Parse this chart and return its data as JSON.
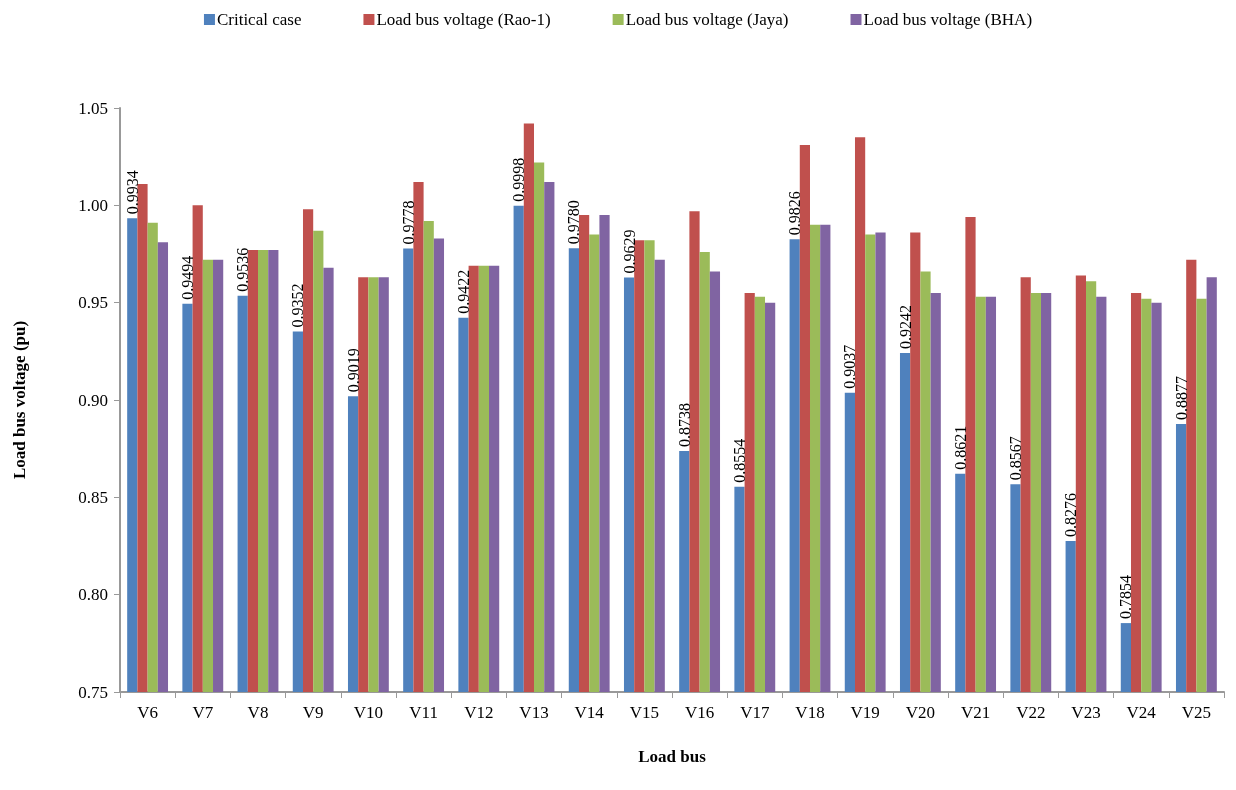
{
  "chart_data": {
    "type": "bar",
    "xlabel": "Load bus",
    "ylabel": "Load bus voltage (pu)",
    "categories": [
      "V6",
      "V7",
      "V8",
      "V9",
      "V10",
      "V11",
      "V12",
      "V13",
      "V14",
      "V15",
      "V16",
      "V17",
      "V18",
      "V19",
      "V20",
      "V21",
      "V22",
      "V23",
      "V24",
      "V25"
    ],
    "series": [
      {
        "name": "Critical case",
        "color": "#4f81bd",
        "values": [
          0.9934,
          0.9494,
          0.9536,
          0.9352,
          0.9019,
          0.9778,
          0.9422,
          0.9998,
          0.978,
          0.9629,
          0.8738,
          0.8554,
          0.9826,
          0.9037,
          0.9242,
          0.8621,
          0.8567,
          0.8276,
          0.7854,
          0.8877
        ],
        "value_labels": [
          "0.9934",
          "0.9494",
          "0.9536",
          "0.9352",
          "0.9019",
          "0.9778",
          "0.9422",
          "0.9998",
          "0.9780",
          "0.9629",
          "0.8738",
          "0.8554",
          "0.9826",
          "0.9037",
          "0.9242",
          "0.8621",
          "0.8567",
          "0.8276",
          "0.7854",
          "0.8877"
        ]
      },
      {
        "name": "Load bus voltage (Rao-1)",
        "color": "#c0504d",
        "values": [
          1.011,
          1.0,
          0.977,
          0.998,
          0.963,
          1.012,
          0.969,
          1.042,
          0.995,
          0.982,
          0.997,
          0.955,
          1.031,
          1.035,
          0.986,
          0.994,
          0.963,
          0.964,
          0.955,
          0.972
        ]
      },
      {
        "name": "Load bus voltage (Jaya)",
        "color": "#9bbb59",
        "values": [
          0.991,
          0.972,
          0.977,
          0.987,
          0.963,
          0.992,
          0.969,
          1.022,
          0.985,
          0.982,
          0.976,
          0.953,
          0.99,
          0.985,
          0.966,
          0.953,
          0.955,
          0.961,
          0.952,
          0.952
        ]
      },
      {
        "name": "Load bus voltage (BHA)",
        "color": "#8064a2",
        "values": [
          0.981,
          0.972,
          0.977,
          0.968,
          0.963,
          0.983,
          0.969,
          1.012,
          0.995,
          0.972,
          0.966,
          0.95,
          0.99,
          0.986,
          0.955,
          0.953,
          0.955,
          0.953,
          0.95,
          0.963
        ]
      }
    ],
    "ylim": [
      0.75,
      1.05
    ],
    "yticks": [
      0.75,
      {
        "value": 0.8,
        "label": "0.80"
      },
      0.85,
      {
        "value": 0.9,
        "label": "0.90"
      },
      0.95,
      {
        "value": 1.0,
        "label": "1.00"
      },
      1.05
    ],
    "grid": false,
    "legend": "top"
  }
}
